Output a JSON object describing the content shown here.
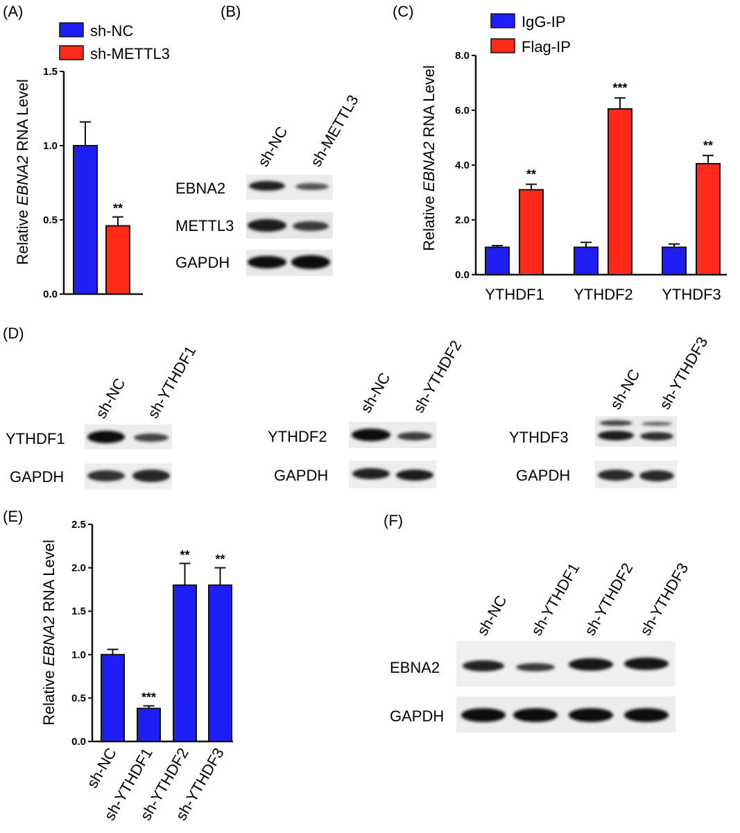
{
  "colors": {
    "blue": "#1f1ff5",
    "red": "#ff2a1a",
    "axis": "#111111"
  },
  "panels": {
    "A": {
      "label": "(A)"
    },
    "B": {
      "label": "(B)",
      "lanes": [
        "sh-NC",
        "sh-METTL3"
      ],
      "rows": [
        "EBNA2",
        "METTL3",
        "GAPDH"
      ]
    },
    "C": {
      "label": "(C)"
    },
    "D": {
      "label": "(D)",
      "blots": [
        {
          "lanes": [
            "sh-NC",
            "sh-YTHDF1"
          ],
          "rows": [
            "YTHDF1",
            "GAPDH"
          ]
        },
        {
          "lanes": [
            "sh-NC",
            "sh-YTHDF2"
          ],
          "rows": [
            "YTHDF2",
            "GAPDH"
          ]
        },
        {
          "lanes": [
            "sh-NC",
            "sh-YTHDF3"
          ],
          "rows": [
            "YTHDF3",
            "GAPDH"
          ]
        }
      ]
    },
    "E": {
      "label": "(E)"
    },
    "F": {
      "label": "(F)",
      "lanes": [
        "sh-NC",
        "sh-YTHDF1",
        "sh-YTHDF2",
        "sh-YTHDF3"
      ],
      "rows": [
        "EBNA2",
        "GAPDH"
      ]
    }
  },
  "chart_data": [
    {
      "panel": "A",
      "type": "bar",
      "ylabel_prefix": "Relative ",
      "ylabel_italic": "EBNA2",
      "ylabel_suffix": " RNA Level",
      "ylim": [
        0,
        1.5
      ],
      "yticks": [
        "0.0",
        "0.5",
        "1.0",
        "1.5"
      ],
      "legend": [
        "sh-NC",
        "sh-METTL3"
      ],
      "series": [
        {
          "name": "sh-NC",
          "values": [
            1.0
          ],
          "errors": [
            0.16
          ]
        },
        {
          "name": "sh-METTL3",
          "values": [
            0.46
          ],
          "errors": [
            0.06
          ],
          "stars": [
            "**"
          ]
        }
      ]
    },
    {
      "panel": "C",
      "type": "bar",
      "ylabel_prefix": "Relative ",
      "ylabel_italic": "EBNA2",
      "ylabel_suffix": " RNA Level",
      "ylim": [
        0,
        8.0
      ],
      "yticks": [
        "0.0",
        "2.0",
        "4.0",
        "6.0",
        "8.0"
      ],
      "categories": [
        "YTHDF1",
        "YTHDF2",
        "YTHDF3"
      ],
      "legend": [
        "IgG-IP",
        "Flag-IP"
      ],
      "series": [
        {
          "name": "IgG-IP",
          "values": [
            1.0,
            1.0,
            1.0
          ],
          "errors": [
            0.06,
            0.18,
            0.12
          ]
        },
        {
          "name": "Flag-IP",
          "values": [
            3.1,
            6.05,
            4.05
          ],
          "errors": [
            0.2,
            0.4,
            0.3
          ],
          "stars": [
            "**",
            "***",
            "**"
          ]
        }
      ]
    },
    {
      "panel": "E",
      "type": "bar",
      "ylabel_prefix": "Relative ",
      "ylabel_italic": "EBNA2",
      "ylabel_suffix": " RNA Level",
      "ylim": [
        0,
        2.5
      ],
      "yticks": [
        "0.0",
        "0.5",
        "1.0",
        "1.5",
        "2.0",
        "2.5"
      ],
      "categories": [
        "sh-NC",
        "sh-YTHDF1",
        "sh-YTHDF2",
        "sh-YTHDF3"
      ],
      "series": [
        {
          "values": [
            1.0,
            0.38,
            1.8,
            1.8
          ],
          "errors": [
            0.06,
            0.03,
            0.25,
            0.2
          ],
          "stars": [
            "",
            "***",
            "**",
            "**"
          ]
        }
      ]
    }
  ]
}
